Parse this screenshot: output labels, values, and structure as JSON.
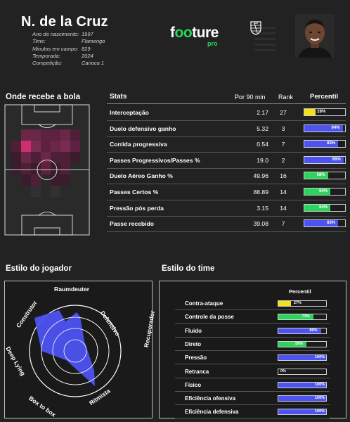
{
  "player": {
    "name": "N. de la Cruz",
    "info": [
      {
        "label": "Ano de nascimento:",
        "value": "1997"
      },
      {
        "label": "Time:",
        "value": "Flamengo"
      },
      {
        "label": "Minutos em campo:",
        "value": "829"
      },
      {
        "label": "Temporada:",
        "value": "2024"
      },
      {
        "label": "Competição:",
        "value": "Carioca 1"
      }
    ]
  },
  "brand": {
    "name_start": "f",
    "name_oo": "oo",
    "name_end": "ture",
    "tier": "pro",
    "accent": "#2bd45a"
  },
  "heatmap": {
    "title": "Onde recebe a bola"
  },
  "stats": {
    "headers": {
      "stat": "Stats",
      "p90": "Por 90 min",
      "rank": "Rank",
      "percentile": "Percentil"
    },
    "rows": [
      {
        "name": "Interceptação",
        "p90": "2.17",
        "rank": "27",
        "pct": 28,
        "label": "28%",
        "color": "#f2e21c"
      },
      {
        "name": "Duelo defensivo ganho",
        "p90": "5.32",
        "rank": "3",
        "pct": 94,
        "label": "94%",
        "color": "#4d53f0"
      },
      {
        "name": "Corrida progressiva",
        "p90": "0.54",
        "rank": "7",
        "pct": 83,
        "label": "83%",
        "color": "#4d53f0"
      },
      {
        "name": "Passes Progressivos/Passes %",
        "p90": "19.0",
        "rank": "2",
        "pct": 96,
        "label": "96%",
        "color": "#4d53f0"
      },
      {
        "name": "Duelo Aéreo Ganho %",
        "p90": "49.96",
        "rank": "16",
        "pct": 58,
        "label": "58%",
        "color": "#2bd45a"
      },
      {
        "name": "Passes Certos %",
        "p90": "88.89",
        "rank": "14",
        "pct": 64,
        "label": "64%",
        "color": "#2bd45a"
      },
      {
        "name": "Pressão pós perda",
        "p90": "3.15",
        "rank": "14",
        "pct": 64,
        "label": "64%",
        "color": "#2bd45a"
      },
      {
        "name": "Passe recebido",
        "p90": "39.08",
        "rank": "7",
        "pct": 83,
        "label": "83%",
        "color": "#4d53f0"
      }
    ]
  },
  "player_style": {
    "title": "Estilo do jogador",
    "axes": [
      "Raumdeuter",
      "Defensivo",
      "Recuperador",
      "Ritmista",
      "Box to box",
      "Deep Lying",
      "Construtor"
    ],
    "fill_color": "#4d53f0"
  },
  "team_style": {
    "title": "Estilo do time",
    "header": "Percentil",
    "rows": [
      {
        "name": "Contra-ataque",
        "pct": 27,
        "label": "27%",
        "color": "#f2e21c"
      },
      {
        "name": "Controle da posse",
        "pct": 73,
        "label": "73%",
        "color": "#2bd45a"
      },
      {
        "name": "Fluido",
        "pct": 89,
        "label": "89%",
        "color": "#4d53f0"
      },
      {
        "name": "Direto",
        "pct": 59,
        "label": "59%",
        "color": "#2bd45a"
      },
      {
        "name": "Pressão",
        "pct": 100,
        "label": "100%",
        "color": "#4d53f0"
      },
      {
        "name": "Retranca",
        "pct": 0,
        "label": "0%",
        "color": "#4d53f0"
      },
      {
        "name": "Físico",
        "pct": 100,
        "label": "100%",
        "color": "#4d53f0"
      },
      {
        "name": "Eficiência ofensiva",
        "pct": 100,
        "label": "100%",
        "color": "#4d53f0"
      },
      {
        "name": "Eficiência defensiva",
        "pct": 100,
        "label": "100%",
        "color": "#4d53f0"
      }
    ]
  }
}
